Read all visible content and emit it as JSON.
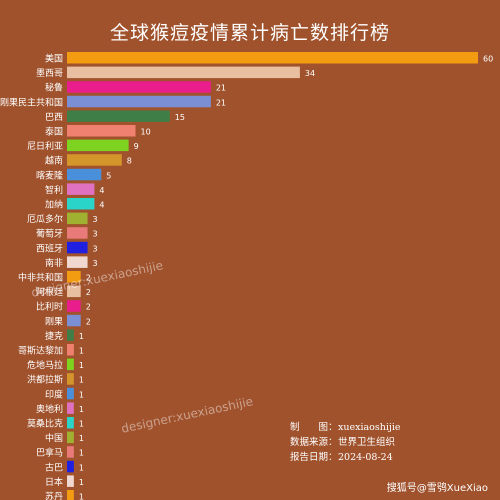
{
  "title": "全球猴痘疫情累计病亡数排行榜",
  "chart_data": {
    "type": "bar",
    "orientation": "horizontal",
    "title": "全球猴痘疫情累计病亡数排行榜",
    "xlim": [
      0,
      60
    ],
    "categories": [
      "美国",
      "墨西哥",
      "秘鲁",
      "刚果民主共和国",
      "巴西",
      "泰国",
      "尼日利亚",
      "越南",
      "喀麦隆",
      "智利",
      "加纳",
      "厄瓜多尔",
      "葡萄牙",
      "西班牙",
      "南非",
      "中非共和国",
      "阿根廷",
      "比利时",
      "刚果",
      "捷克",
      "哥斯达黎加",
      "危地马拉",
      "洪都拉斯",
      "印度",
      "奥地利",
      "莫桑比克",
      "中国",
      "巴拿马",
      "古巴",
      "日本",
      "苏丹"
    ],
    "values": [
      60,
      34,
      21,
      21,
      15,
      10,
      9,
      8,
      5,
      4,
      4,
      3,
      3,
      3,
      3,
      2,
      2,
      2,
      2,
      1,
      1,
      1,
      1,
      1,
      1,
      1,
      1,
      1,
      1,
      1,
      1
    ],
    "colors": [
      "#f39c12",
      "#e8bfa0",
      "#e91e8c",
      "#7b8fd4",
      "#3f7f47",
      "#f08070",
      "#7ed321",
      "#d4952a",
      "#4a8fd9",
      "#e070c0",
      "#2ad4c8",
      "#a0b030",
      "#e87a7a",
      "#2020e0",
      "#f0d8d0",
      "#f39c12",
      "#e8bfa0",
      "#e91e8c",
      "#7b8fd4",
      "#3f7f47",
      "#f08070",
      "#7ed321",
      "#d4952a",
      "#4a8fd9",
      "#e070c0",
      "#2ad4c8",
      "#a0b030",
      "#e87a7a",
      "#2020e0",
      "#f0d8d0",
      "#f39c12"
    ]
  },
  "info": {
    "producer_key": "制　　图：",
    "producer_val": "xuexiaoshijie",
    "source_key": "数据来源：",
    "source_val": "世界卫生组织",
    "date_key": "报告日期：",
    "date_val": "2024-08-24"
  },
  "watermark": "designer:xuexiaoshijie",
  "footer": "搜狐号@雪鸮XueXiao"
}
